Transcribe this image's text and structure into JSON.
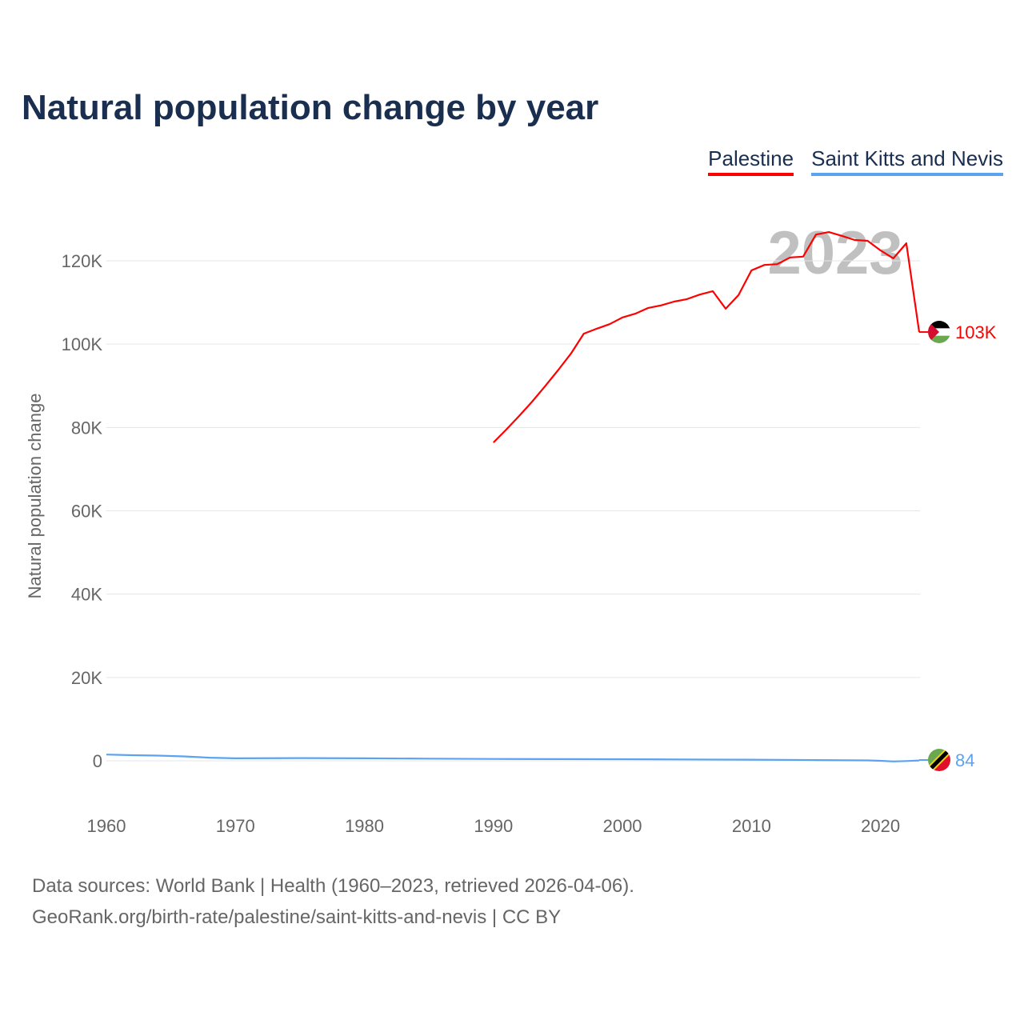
{
  "chart_data": {
    "type": "line",
    "title": "Natural population change by year",
    "xlabel": "",
    "ylabel": "Natural population change",
    "xlim": [
      1960,
      2023
    ],
    "ylim": [
      -12000,
      130000
    ],
    "x_ticks": [
      1960,
      1970,
      1980,
      1990,
      2000,
      2010,
      2020
    ],
    "y_ticks": [
      0,
      20000,
      40000,
      60000,
      80000,
      100000,
      120000
    ],
    "y_tick_labels": [
      "0",
      "20K",
      "40K",
      "60K",
      "80K",
      "100K",
      "120K"
    ],
    "grid": true,
    "legend_position": "top-right",
    "watermark_year": "2023",
    "series": [
      {
        "name": "Palestine",
        "color": "#ff0000",
        "end_label": "103K",
        "x": [
          1990,
          1991,
          1992,
          1993,
          1994,
          1995,
          1996,
          1997,
          1998,
          1999,
          2000,
          2001,
          2002,
          2003,
          2004,
          2005,
          2006,
          2007,
          2008,
          2009,
          2010,
          2011,
          2012,
          2013,
          2014,
          2015,
          2016,
          2017,
          2018,
          2019,
          2020,
          2021,
          2022,
          2023
        ],
        "values": [
          76400,
          79500,
          82800,
          86200,
          89900,
          93700,
          97700,
          102500,
          103700,
          104800,
          106400,
          107300,
          108700,
          109300,
          110200,
          110800,
          111900,
          112700,
          108500,
          111800,
          117700,
          119000,
          119200,
          120800,
          121000,
          126300,
          126900,
          126000,
          125000,
          124800,
          122500,
          120600,
          124200,
          102900
        ]
      },
      {
        "name": "Saint Kitts and Nevis",
        "color": "#5ba3f0",
        "end_label": "84",
        "x": [
          1960,
          1962,
          1964,
          1966,
          1968,
          1970,
          1975,
          1980,
          1985,
          1990,
          1995,
          2000,
          2005,
          2010,
          2015,
          2019,
          2020,
          2021,
          2022,
          2023
        ],
        "values": [
          1500,
          1350,
          1250,
          1050,
          750,
          600,
          650,
          600,
          520,
          450,
          400,
          380,
          330,
          260,
          170,
          90,
          0,
          -150,
          -50,
          84
        ]
      }
    ]
  },
  "footer": {
    "line1": "Data sources: World Bank | Health (1960–2023, retrieved 2026-04-06).",
    "line2": "GeoRank.org/birth-rate/palestine/saint-kitts-and-nevis | CC BY"
  }
}
